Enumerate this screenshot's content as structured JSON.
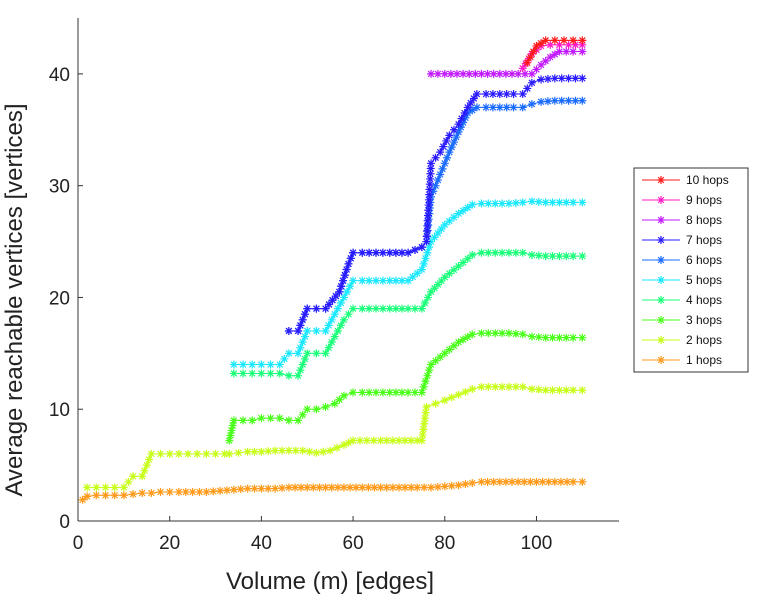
{
  "chart_data": {
    "type": "line",
    "xlabel": "Volume (m) [edges]",
    "ylabel": "Average reachable vertices [vertices]",
    "xlim": [
      0,
      118
    ],
    "ylim": [
      0,
      45
    ],
    "x_ticks": [
      0,
      20,
      40,
      60,
      80,
      100
    ],
    "y_ticks": [
      0,
      10,
      20,
      30,
      40
    ],
    "grid": false,
    "legend_placement": "right",
    "marker": "asterisk",
    "series": [
      {
        "name": "10 hops",
        "color": "#ff1a1a",
        "x": [
          98,
          100,
          102,
          104,
          106,
          108,
          110
        ],
        "y": [
          41,
          42.5,
          43,
          43,
          43,
          43,
          43
        ]
      },
      {
        "name": "9 hops",
        "color": "#ff1ac8",
        "x": [
          97,
          99,
          101,
          103,
          105,
          107,
          110
        ],
        "y": [
          40.5,
          41.8,
          42.5,
          42.6,
          42.6,
          42.6,
          42.6
        ]
      },
      {
        "name": "8 hops",
        "color": "#c21aff",
        "x": [
          77,
          80,
          84,
          88,
          92,
          96,
          99,
          101,
          103,
          105,
          108,
          110
        ],
        "y": [
          40,
          40,
          40,
          40,
          40,
          40,
          40,
          40.8,
          41.5,
          42,
          42,
          42
        ]
      },
      {
        "name": "7 hops",
        "color": "#2a1aff",
        "x": [
          46,
          48,
          50,
          52,
          54,
          57,
          59,
          60,
          62,
          65,
          68,
          72,
          75,
          76,
          77,
          79,
          81,
          83,
          85,
          87,
          89,
          92,
          95,
          97,
          99,
          101,
          104,
          107,
          110
        ],
        "y": [
          17,
          17,
          19,
          19,
          19,
          20.5,
          23,
          24,
          24,
          24,
          24,
          24,
          24.5,
          25,
          32,
          33,
          34.5,
          35.5,
          37,
          38.2,
          38.2,
          38.2,
          38.2,
          38.2,
          39.2,
          39.5,
          39.6,
          39.6,
          39.6
        ]
      },
      {
        "name": "6 hops",
        "color": "#1a6bff",
        "x": [
          46,
          48,
          50,
          52,
          54,
          57,
          59,
          60,
          62,
          65,
          68,
          72,
          75,
          76,
          77,
          79,
          81,
          83,
          85,
          87,
          89,
          92,
          95,
          97,
          99,
          101,
          104,
          107,
          110
        ],
        "y": [
          17,
          17,
          19,
          19,
          19,
          20.5,
          23,
          24,
          24,
          24,
          24,
          24,
          24.5,
          25,
          29,
          31,
          33,
          34.8,
          36.5,
          37,
          37,
          37,
          37,
          37,
          37.3,
          37.5,
          37.6,
          37.6,
          37.6
        ]
      },
      {
        "name": "5 hops",
        "color": "#1ae8ff",
        "x": [
          34,
          36,
          38,
          40,
          42,
          44,
          46,
          48,
          50,
          52,
          54,
          56,
          58,
          60,
          62,
          65,
          68,
          72,
          75,
          77,
          80,
          83,
          86,
          88,
          91,
          94,
          97,
          99,
          102,
          105,
          108,
          110
        ],
        "y": [
          14,
          14,
          14,
          14,
          14,
          14,
          15,
          15,
          17,
          17,
          17,
          18.5,
          20,
          21.5,
          21.5,
          21.5,
          21.5,
          21.5,
          22.5,
          25,
          26.5,
          27.5,
          28.3,
          28.4,
          28.4,
          28.4,
          28.5,
          28.6,
          28.5,
          28.5,
          28.5,
          28.5
        ]
      },
      {
        "name": "4 hops",
        "color": "#1aff7a",
        "x": [
          34,
          36,
          38,
          40,
          42,
          44,
          46,
          48,
          50,
          52,
          54,
          56,
          58,
          60,
          62,
          65,
          68,
          72,
          75,
          77,
          80,
          83,
          86,
          88,
          91,
          94,
          97,
          99,
          102,
          105,
          108,
          110
        ],
        "y": [
          13.2,
          13.2,
          13.2,
          13.2,
          13.2,
          13.2,
          13,
          13,
          15,
          15,
          15,
          16.5,
          18,
          19,
          19,
          19,
          19,
          19,
          19,
          20.5,
          21.8,
          22.8,
          23.8,
          24,
          24,
          24,
          24,
          23.8,
          23.7,
          23.7,
          23.7,
          23.7
        ]
      },
      {
        "name": "3 hops",
        "color": "#4aff1a",
        "x": [
          33,
          34,
          36,
          38,
          40,
          42,
          44,
          46,
          48,
          50,
          52,
          54,
          56,
          58,
          60,
          62,
          65,
          68,
          72,
          75,
          77,
          80,
          83,
          86,
          88,
          91,
          94,
          97,
          99,
          102,
          105,
          108,
          110
        ],
        "y": [
          7.2,
          9,
          9,
          9,
          9.2,
          9.2,
          9.2,
          9,
          9,
          10,
          10,
          10.2,
          10.5,
          11.2,
          11.5,
          11.5,
          11.5,
          11.5,
          11.5,
          11.5,
          14,
          15,
          16,
          16.7,
          16.8,
          16.8,
          16.8,
          16.7,
          16.5,
          16.4,
          16.4,
          16.4,
          16.4
        ]
      },
      {
        "name": "2 hops",
        "color": "#c8ff1a",
        "x": [
          2,
          4,
          6,
          8,
          10,
          12,
          14,
          16,
          18,
          20,
          22,
          24,
          26,
          28,
          30,
          32,
          33,
          35,
          37,
          40,
          43,
          46,
          49,
          52,
          55,
          58,
          60,
          63,
          66,
          70,
          74,
          75,
          76,
          78,
          80,
          83,
          86,
          88,
          91,
          94,
          97,
          99,
          102,
          105,
          108,
          110
        ],
        "y": [
          3,
          3,
          3,
          3,
          3,
          4,
          4,
          6,
          6,
          6,
          6,
          6,
          6,
          6,
          6,
          6,
          6,
          6.1,
          6.2,
          6.2,
          6.3,
          6.3,
          6.3,
          6.1,
          6.3,
          6.8,
          7.2,
          7.2,
          7.2,
          7.2,
          7.2,
          7.2,
          10.2,
          10.5,
          10.8,
          11.3,
          11.8,
          12,
          12,
          12,
          12,
          11.8,
          11.7,
          11.7,
          11.7,
          11.7
        ]
      },
      {
        "name": "1 hops",
        "color": "#ff9a1a",
        "x": [
          1,
          2,
          4,
          6,
          8,
          10,
          12,
          14,
          16,
          18,
          20,
          22,
          25,
          28,
          31,
          34,
          37,
          40,
          43,
          46,
          50,
          54,
          58,
          62,
          66,
          70,
          74,
          77,
          80,
          83,
          86,
          88,
          92,
          96,
          100,
          104,
          108,
          110
        ],
        "y": [
          1.9,
          2.2,
          2.3,
          2.3,
          2.3,
          2.3,
          2.4,
          2.5,
          2.5,
          2.6,
          2.6,
          2.6,
          2.6,
          2.6,
          2.7,
          2.8,
          2.9,
          2.9,
          2.9,
          3,
          3,
          3,
          3,
          3,
          3,
          3,
          3,
          3,
          3.1,
          3.2,
          3.4,
          3.5,
          3.5,
          3.5,
          3.5,
          3.5,
          3.5,
          3.5
        ]
      }
    ]
  }
}
